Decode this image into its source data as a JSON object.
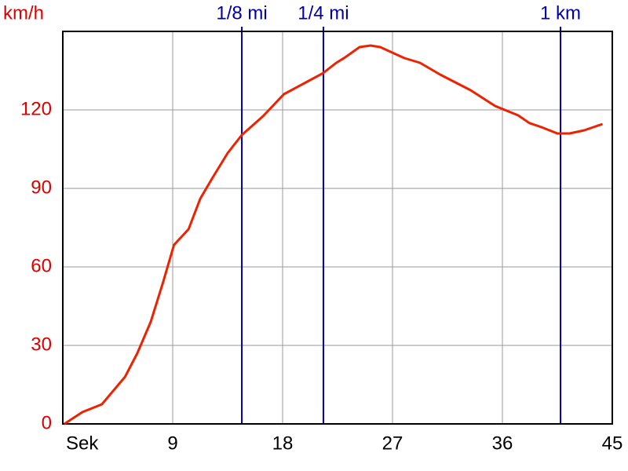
{
  "chart_data": {
    "type": "line",
    "ylabel": "km/h",
    "x": [
      0.13,
      1.6,
      3.2,
      5.1,
      6.1,
      7.2,
      8.2,
      9.1,
      10.3,
      11.25,
      12.2,
      13.5,
      14.66,
      16.4,
      18.1,
      19.9,
      21.3,
      22.4,
      23.1,
      24.3,
      25.2,
      26,
      27.97,
      29.25,
      30.9,
      33.4,
      35.4,
      37.3,
      38.2,
      39.2,
      40.5,
      41.5,
      42.7,
      44.2
    ],
    "values": [
      0,
      4.5,
      7.5,
      18,
      27,
      39,
      54,
      68.4,
      74.4,
      86,
      93.6,
      103.5,
      110.4,
      117.6,
      126,
      130.5,
      134,
      138,
      140,
      144,
      144.6,
      144,
      139.8,
      138,
      133.5,
      127.5,
      121.5,
      117.9,
      115,
      113.4,
      111,
      111,
      112.2,
      114.6
    ],
    "color": "#ee2200",
    "xlim": [
      0,
      45
    ],
    "ylim": [
      0,
      150
    ],
    "xticks": [
      {
        "value": 0,
        "label": "Sek"
      },
      9,
      18,
      27,
      36,
      45
    ],
    "yticks": [
      0,
      30,
      60,
      90,
      120
    ],
    "grid": true,
    "markers": [
      {
        "label": "1/8 mi",
        "x": 14.66
      },
      {
        "label": "1/4 mi",
        "x": 21.34
      },
      {
        "label": "1 km",
        "x": 40.76
      }
    ],
    "marker_color": "#0000aa",
    "ytick_color": "#dd0000"
  }
}
